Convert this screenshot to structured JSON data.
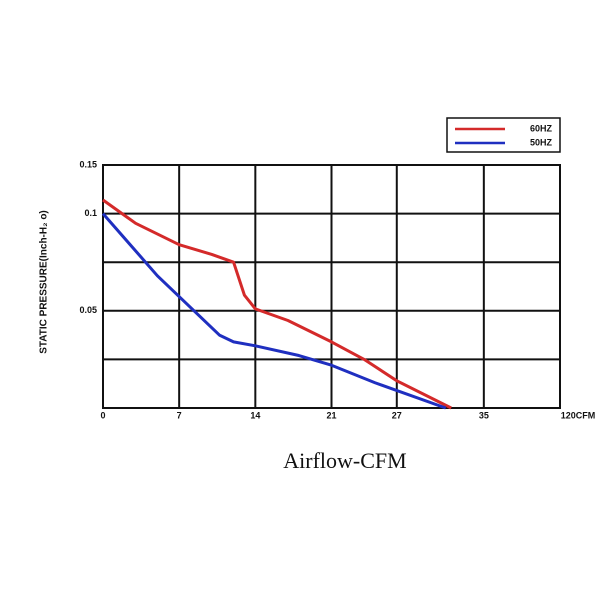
{
  "chart_data": {
    "type": "line",
    "x_label": "Airflow-CFM",
    "y_label": "STATIC PRESSURE(Inch-H₂ o)",
    "xlim": [
      0,
      42
    ],
    "xticks": [
      0,
      7,
      14,
      21,
      27,
      35
    ],
    "x_end_label": "120CFM",
    "ylim": [
      0,
      0.125
    ],
    "yticks": [
      0.05,
      0.1
    ],
    "y_end_label": "0.15",
    "ygrid": [
      0.025,
      0.075
    ],
    "grid": true,
    "legend": "top-right",
    "series": [
      {
        "name": "60HZ",
        "color": "#d42a2a",
        "x": [
          0,
          3,
          7,
          10,
          12,
          13,
          14,
          17,
          21,
          24,
          27,
          32
        ],
        "values": [
          0.107,
          0.095,
          0.084,
          0.079,
          0.075,
          0.058,
          0.051,
          0.045,
          0.034,
          0.025,
          0.014,
          0
        ]
      },
      {
        "name": "50HZ",
        "color": "#1f2fc0",
        "x": [
          0,
          5,
          10.7,
          12,
          14,
          18,
          21,
          25,
          31.5
        ],
        "values": [
          0.1,
          0.068,
          0.0375,
          0.034,
          0.032,
          0.027,
          0.022,
          0.013,
          0
        ]
      }
    ]
  }
}
